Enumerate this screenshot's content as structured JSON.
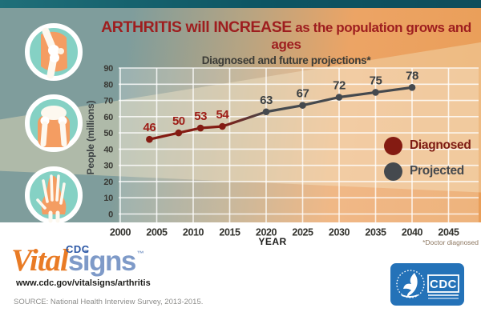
{
  "title": {
    "emphasis": "ARTHRITIS will INCREASE",
    "rest": " as the population grows and ages",
    "subtitle": "Diagnosed and future projections*",
    "color": "#9e1e1f"
  },
  "icons": [
    {
      "name": "knee-joint-icon"
    },
    {
      "name": "hip-joint-icon"
    },
    {
      "name": "hand-bones-icon"
    }
  ],
  "chart_data": {
    "type": "line",
    "title": "ARTHRITIS will INCREASE as the population grows and ages",
    "subtitle": "Diagnosed and future projections*",
    "xlabel": "YEAR",
    "ylabel": "People (millions)",
    "x_ticks": [
      2000,
      2005,
      2010,
      2015,
      2020,
      2025,
      2030,
      2035,
      2040,
      2045
    ],
    "y_ticks": [
      0,
      10,
      20,
      30,
      40,
      50,
      60,
      70,
      80,
      90
    ],
    "xlim": [
      2000,
      2049
    ],
    "ylim": [
      0,
      90
    ],
    "grid": true,
    "legend_position": "right-middle",
    "series": [
      {
        "name": "Diagnosed",
        "color": "#841b12",
        "label_color": "#9e1d17",
        "points": [
          {
            "x": 2004,
            "y": 46
          },
          {
            "x": 2008,
            "y": 50
          },
          {
            "x": 2011,
            "y": 53
          },
          {
            "x": 2014,
            "y": 54
          }
        ]
      },
      {
        "name": "Projected",
        "color": "#45494e",
        "label_color": "#3c4043",
        "points": [
          {
            "x": 2020,
            "y": 63
          },
          {
            "x": 2025,
            "y": 67
          },
          {
            "x": 2030,
            "y": 72
          },
          {
            "x": 2035,
            "y": 75
          },
          {
            "x": 2040,
            "y": 78
          }
        ]
      }
    ],
    "footnote": "*Doctor diagnosed"
  },
  "footer": {
    "logo": {
      "vital": "Vital",
      "cdc": "CDC",
      "signs": "signs",
      "tm": "TM"
    },
    "url": "www.cdc.gov/vitalsigns/arthritis",
    "source": "SOURCE: National Health Interview Survey, 2013-2015."
  },
  "cdc_logo": {
    "text": "CDC"
  },
  "colors": {
    "band_teal": "#7f9d9c",
    "band_orange": "#eca465",
    "top_strip": "#0d5563",
    "title_red": "#9e1e1f",
    "diagnosed": "#841b12",
    "projected": "#45494e",
    "logo_orange": "#e97b25",
    "logo_blue": "#7e9ac8",
    "cdc_blue": "#2472b8"
  }
}
